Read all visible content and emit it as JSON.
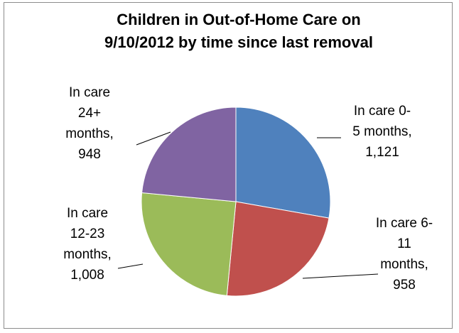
{
  "chart_data": {
    "type": "pie",
    "title_lines": [
      "Children in Out-of-Home Care on",
      "9/10/2012 by time since last removal"
    ],
    "slices": [
      {
        "label_lines": [
          "In care 0-",
          "5 months,",
          "1,121"
        ],
        "category": "In care 0-5 months",
        "value": 1121,
        "color": "#4f81bd"
      },
      {
        "label_lines": [
          "In care 6-",
          "11",
          "months,",
          "958"
        ],
        "category": "In care 6-11 months",
        "value": 958,
        "color": "#c0504d"
      },
      {
        "label_lines": [
          "In care",
          "12-23",
          "months,",
          "1,008"
        ],
        "category": "In care 12-23 months",
        "value": 1008,
        "color": "#9bbb59"
      },
      {
        "label_lines": [
          "In care",
          "24+",
          "months,",
          "948"
        ],
        "category": "In care 24+ months",
        "value": 948,
        "color": "#8064a2"
      }
    ],
    "start_angle": "12 o'clock",
    "direction": "clockwise",
    "data_labels": "outside with leader lines",
    "legend": "none"
  }
}
